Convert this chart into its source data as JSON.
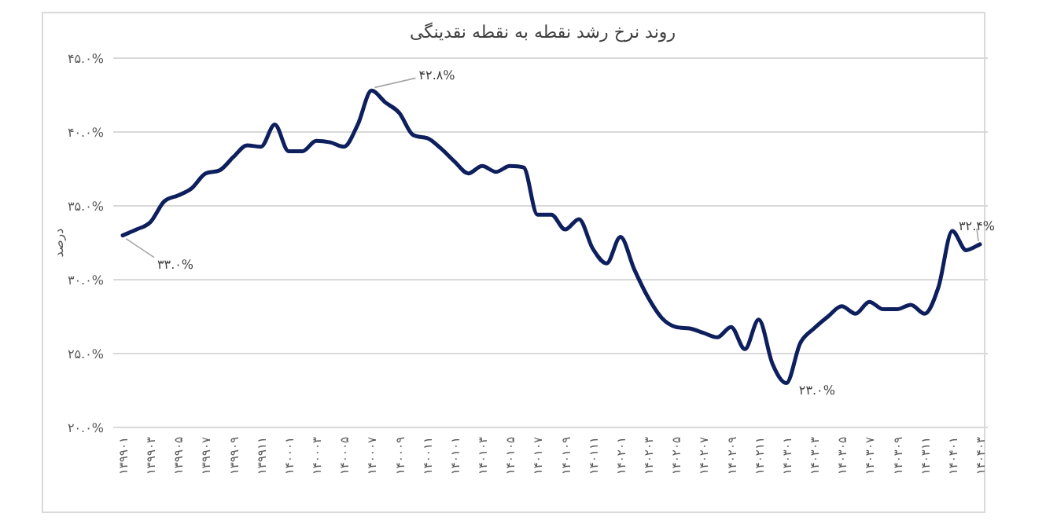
{
  "chart_data": {
    "type": "line",
    "title": "روند نرخ رشد نقطه به نقطه نقدینگی",
    "ylabel": "درصد",
    "categories": [
      "۱۳۹۹۰۱",
      null,
      "۱۳۹۹۰۳",
      null,
      "۱۳۹۹۰۵",
      null,
      "۱۳۹۹۰۷",
      null,
      "۱۳۹۹۰۹",
      null,
      "۱۳۹۹۱۱",
      null,
      "۱۴۰۰۰۱",
      null,
      "۱۴۰۰۰۳",
      null,
      "۱۴۰۰۰۵",
      null,
      "۱۴۰۰۰۷",
      null,
      "۱۴۰۰۰۹",
      null,
      "۱۴۰۰۱۱",
      null,
      "۱۴۰۱۰۱",
      null,
      "۱۴۰۱۰۳",
      null,
      "۱۴۰۱۰۵",
      null,
      "۱۴۰۱۰۷",
      null,
      "۱۴۰۱۰۹",
      null,
      "۱۴۰۱۱۱",
      null,
      "۱۴۰۲۰۱",
      null,
      "۱۴۰۲۰۳",
      null,
      "۱۴۰۲۰۵",
      null,
      "۱۴۰۲۰۷",
      null,
      "۱۴۰۲۰۹",
      null,
      "۱۴۰۲۱۱",
      null,
      "۱۴۰۳۰۱",
      null,
      "۱۴۰۳۰۳",
      null,
      "۱۴۰۳۰۵",
      null,
      "۱۴۰۳۰۷",
      null,
      "۱۴۰۳۰۹",
      null,
      "۱۴۰۳۱۱",
      null,
      "۱۴۰۴۰۱",
      null,
      "۱۴۰۴۰۳"
    ],
    "series": [
      {
        "color": "#0e1f5e",
        "values": [
          33.0,
          33.4,
          33.9,
          35.3,
          35.7,
          36.2,
          37.2,
          37.4,
          38.3,
          39.1,
          39.0,
          40.5,
          38.7,
          38.7,
          39.4,
          39.3,
          39.0,
          40.5,
          42.8,
          42.0,
          41.3,
          39.8,
          39.6,
          38.9,
          38.0,
          37.2,
          37.7,
          37.3,
          37.7,
          37.6,
          34.4,
          34.4,
          33.4,
          34.1,
          32.1,
          31.1,
          32.9,
          30.7,
          28.8,
          27.4,
          26.8,
          26.7,
          26.4,
          26.1,
          26.8,
          25.3,
          27.3,
          24.3,
          23.0,
          25.7,
          26.7,
          27.5,
          28.2,
          27.7,
          28.5,
          28.0,
          28.0,
          28.3,
          27.7,
          29.5,
          33.3,
          32.0,
          32.4
        ]
      }
    ],
    "ylim": [
      20,
      45
    ],
    "yticks": [
      {
        "value": 20,
        "label": "۲۰.۰%"
      },
      {
        "value": 25,
        "label": "۲۵.۰%"
      },
      {
        "value": 30,
        "label": "۳۰.۰%"
      },
      {
        "value": 35,
        "label": "۳۵.۰%"
      },
      {
        "value": 40,
        "label": "۴۰.۰%"
      },
      {
        "value": 45,
        "label": "۴۵.۰%"
      }
    ],
    "grid": "y",
    "annotations": [
      {
        "text": "۳۳.۰%",
        "x": "۱۳۹۹۰۱",
        "y": 33.0
      },
      {
        "text": "۴۲.۸%",
        "x": "۱۴۰۰۰۷",
        "y": 42.8
      },
      {
        "text": "۲۳.۰%",
        "x": "۱۴۰۳۰۱",
        "y": 23.0
      },
      {
        "text": "۳۲.۴%",
        "x": "۱۴۰۴۰۳",
        "y": 32.4
      }
    ]
  }
}
